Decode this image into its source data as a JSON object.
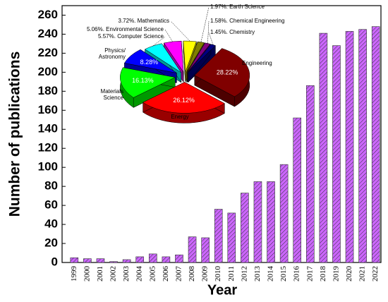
{
  "chart_data": {
    "type": "bar",
    "x_label": "Year",
    "y_label": "Number of publications",
    "categories": [
      "1999",
      "2000",
      "2001",
      "2002",
      "2003",
      "2004",
      "2005",
      "2006",
      "2007",
      "2008",
      "2009",
      "2010",
      "2011",
      "2012",
      "2013",
      "2014",
      "2015",
      "2016",
      "2017",
      "2018",
      "2019",
      "2020",
      "2021",
      "2022"
    ],
    "values": [
      5,
      4,
      4,
      1,
      3,
      6,
      9,
      6,
      8,
      27,
      26,
      56,
      52,
      73,
      85,
      85,
      103,
      152,
      186,
      241,
      228,
      243,
      245,
      248
    ],
    "color": "#cc66ff",
    "ylim": [
      0,
      270
    ],
    "yticks": [
      0,
      20,
      40,
      60,
      80,
      100,
      120,
      140,
      160,
      180,
      200,
      220,
      240,
      260
    ],
    "inset": {
      "type": "pie",
      "labels": [
        "Engineering",
        "Energy",
        "Materials\nScience",
        "Physics/\nAstronomy",
        "Computer Science",
        "Environmental Science",
        "Mathematics",
        "Earth Science",
        "Chemical Engineering",
        "Chemistry"
      ],
      "values": [
        28.22,
        26.12,
        16.13,
        8.28,
        5.57,
        5.06,
        3.72,
        1.97,
        1.58,
        1.45
      ],
      "value_labels": [
        "28.22%",
        "26.12%",
        "16.13%",
        "8.28%",
        "5.57%.",
        "5.06%.",
        "3.72%.",
        "1.97%.",
        "1.58%.",
        "1.45%."
      ],
      "colors": [
        "#800000",
        "#ff0000",
        "#00ff00",
        "#0000ff",
        "#00ffff",
        "#ff00ff",
        "#ffff00",
        "#808000",
        "#800080",
        "#000080"
      ]
    }
  }
}
